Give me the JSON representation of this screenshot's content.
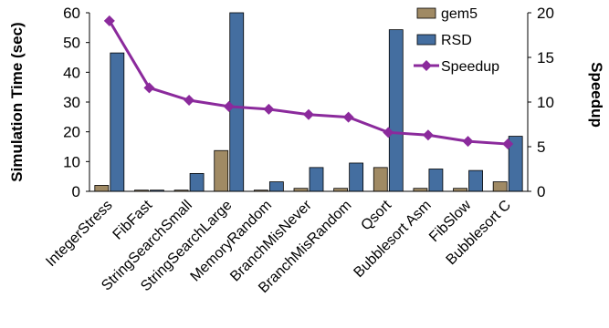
{
  "chart_data": {
    "type": "bar",
    "categories": [
      "IntegerStress",
      "FibFast",
      "StringSearchSmall",
      "StringSearchLarge",
      "MemoryRandom",
      "BranchMisNever",
      "BranchMisRandom",
      "Qsort",
      "Bubblesort Asm",
      "FibSlow",
      "Bubblesort C"
    ],
    "series": [
      {
        "name": "gem5",
        "axis": "left",
        "type": "bar",
        "color": "#a08a64",
        "values": [
          2,
          0.4,
          0.4,
          13.7,
          0.4,
          1,
          1,
          8,
          1,
          1,
          3.2
        ]
      },
      {
        "name": "RSD",
        "axis": "left",
        "type": "bar",
        "color": "#446ea0",
        "values": [
          46.5,
          0.4,
          6,
          60,
          3.2,
          8,
          9.5,
          54.3,
          7.5,
          7,
          18.5
        ]
      },
      {
        "name": "Speedup",
        "axis": "right",
        "type": "line",
        "color": "#8b2a9c",
        "values": [
          19.1,
          11.6,
          10.2,
          9.5,
          9.2,
          8.6,
          8.3,
          6.6,
          6.3,
          5.6,
          5.3
        ]
      }
    ],
    "ylabel": "Simulation Time (sec)",
    "ylim": [
      0,
      60
    ],
    "yticks": [
      "0",
      "10",
      "20",
      "30",
      "40",
      "50",
      "60"
    ],
    "y2label": "Speedup",
    "y2lim": [
      0,
      20
    ],
    "y2ticks": [
      "0",
      "5",
      "10",
      "15",
      "20"
    ],
    "legend": {
      "placement": "top-right",
      "entries": [
        "gem5",
        "RSD",
        "Speedup"
      ]
    },
    "grid": false
  }
}
